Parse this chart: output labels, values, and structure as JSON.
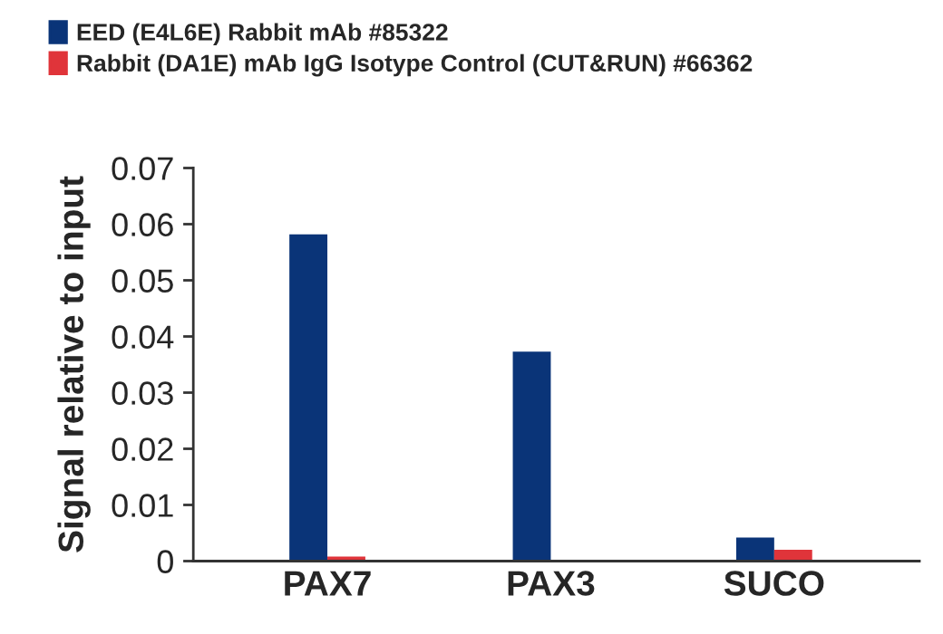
{
  "chart_data": {
    "type": "bar",
    "ylabel": "Signal relative to input",
    "categories": [
      "PAX7",
      "PAX3",
      "SUCO"
    ],
    "series": [
      {
        "name": "EED (E4L6E) Rabbit mAb #85322",
        "color": "#0a3478",
        "values": [
          0.0582,
          0.0373,
          0.0042
        ]
      },
      {
        "name": "Rabbit (DA1E) mAb IgG Isotype Control (CUT&RUN) #66362",
        "color": "#e0343a",
        "values": [
          0.0008,
          null,
          0.002
        ]
      }
    ],
    "ylim": [
      0,
      0.07
    ],
    "yticks": [
      0,
      0.01,
      0.02,
      0.03,
      0.04,
      0.05,
      0.06,
      0.07
    ],
    "grid": false,
    "legend": "top left"
  }
}
